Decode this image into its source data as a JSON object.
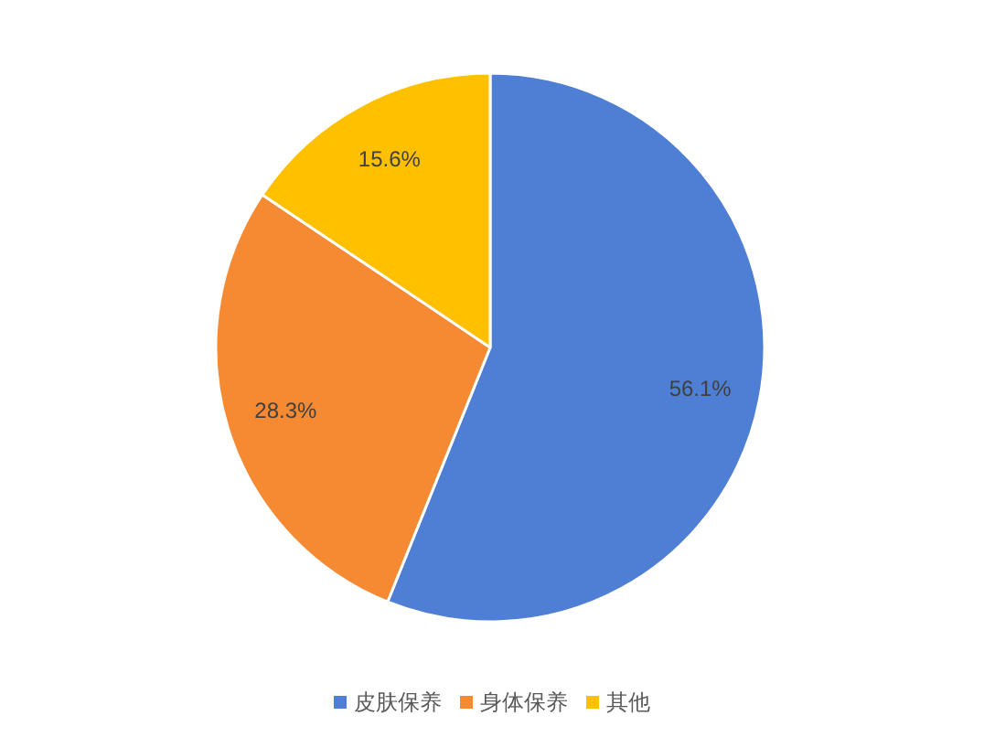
{
  "chart_data": {
    "type": "pie",
    "categories": [
      "皮肤保养",
      "身体保养",
      "其他"
    ],
    "values": [
      56.1,
      28.3,
      15.6
    ],
    "colors": [
      "#4e7fd5",
      "#f58a33",
      "#ffc000"
    ],
    "value_labels": [
      "56.1%",
      "28.3%",
      "15.6%"
    ],
    "legend": "bottom"
  }
}
